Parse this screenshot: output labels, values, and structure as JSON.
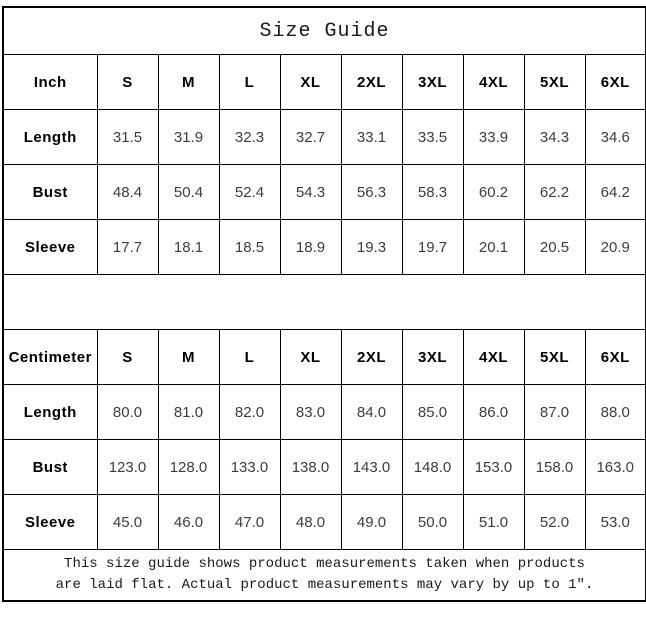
{
  "title": "Size Guide",
  "sizes": [
    "S",
    "M",
    "L",
    "XL",
    "2XL",
    "3XL",
    "4XL",
    "5XL",
    "6XL"
  ],
  "inch_table": {
    "unit": "Inch",
    "rows": [
      {
        "label": "Length",
        "values": [
          "31.5",
          "31.9",
          "32.3",
          "32.7",
          "33.1",
          "33.5",
          "33.9",
          "34.3",
          "34.6"
        ]
      },
      {
        "label": "Bust",
        "values": [
          "48.4",
          "50.4",
          "52.4",
          "54.3",
          "56.3",
          "58.3",
          "60.2",
          "62.2",
          "64.2"
        ]
      },
      {
        "label": "Sleeve",
        "values": [
          "17.7",
          "18.1",
          "18.5",
          "18.9",
          "19.3",
          "19.7",
          "20.1",
          "20.5",
          "20.9"
        ]
      }
    ]
  },
  "cm_table": {
    "unit": "Centimeter",
    "rows": [
      {
        "label": "Length",
        "values": [
          "80.0",
          "81.0",
          "82.0",
          "83.0",
          "84.0",
          "85.0",
          "86.0",
          "87.0",
          "88.0"
        ]
      },
      {
        "label": "Bust",
        "values": [
          "123.0",
          "128.0",
          "133.0",
          "138.0",
          "143.0",
          "148.0",
          "153.0",
          "158.0",
          "163.0"
        ]
      },
      {
        "label": "Sleeve",
        "values": [
          "45.0",
          "46.0",
          "47.0",
          "48.0",
          "49.0",
          "50.0",
          "51.0",
          "52.0",
          "53.0"
        ]
      }
    ]
  },
  "footnote": {
    "line1": "This size guide shows product measurements taken when products",
    "line2": "are laid flat. Actual product measurements may vary by up to 1″."
  },
  "colors": {
    "border": "#000000",
    "label_text": "#000000",
    "value_text": "#3d3d3d",
    "background": "#ffffff"
  }
}
